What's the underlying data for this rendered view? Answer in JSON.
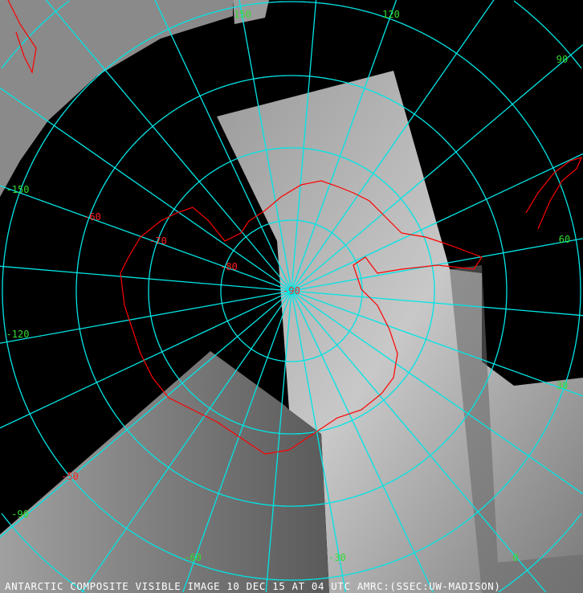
{
  "caption": "ANTARCTIC COMPOSITE VISIBLE IMAGE 10 DEC 15 AT 04 UTC AMRC:(SSEC:UW-MADISON)",
  "colors": {
    "grid": "#00e5e5",
    "coastline": "#ff0000",
    "longitude_labels": "#33dd33",
    "latitude_labels": "#ff2020",
    "background": "#000000"
  },
  "projection": "polar stereographic, south pole",
  "longitude_labels": [
    "150",
    "120",
    "90",
    "60",
    "30",
    "0",
    "-30",
    "-60",
    "-90",
    "-120",
    "-150"
  ],
  "latitude_labels": [
    "-50",
    "-60",
    "-70",
    "-80",
    "-90"
  ]
}
